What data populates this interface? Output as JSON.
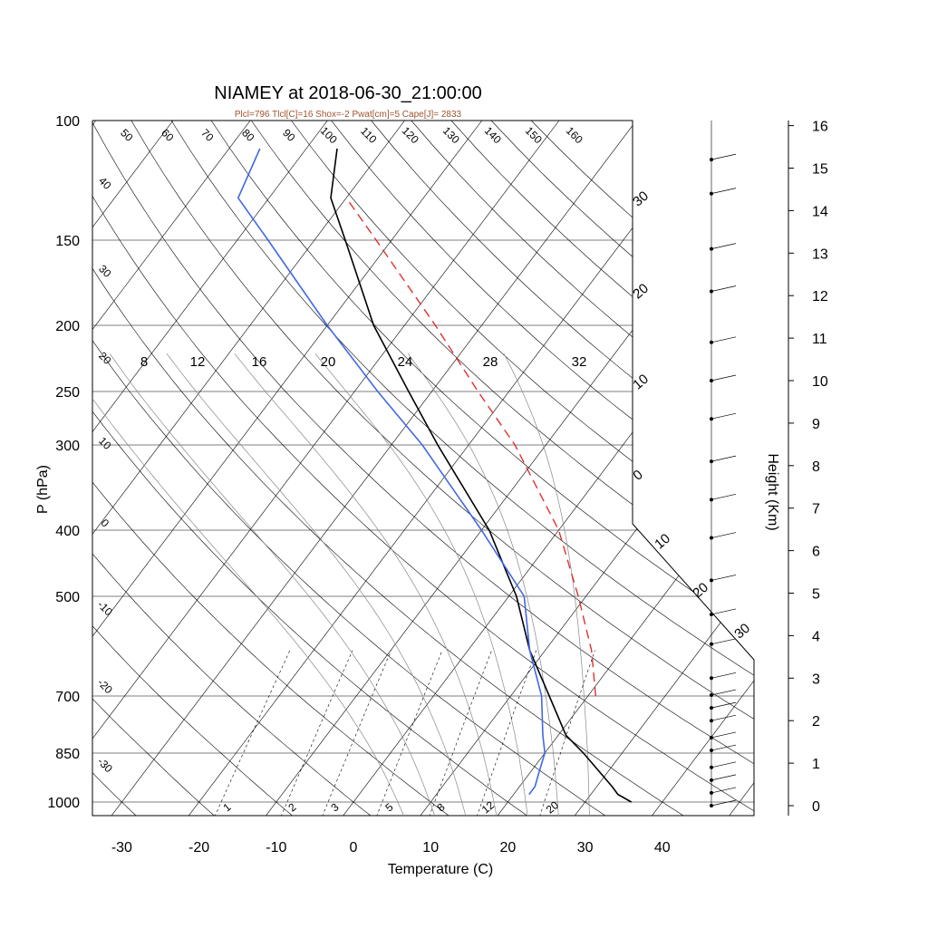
{
  "chart_data": {
    "type": "skew-t log-p",
    "title": "NIAMEY at 2018-06-30_21:00:00",
    "subtitle": "Plcl=796 Tlcl[C]=16 Shox=-2 Pwat[cm]=5 Cape[J]= 2833",
    "xlabel": "Temperature (C)",
    "ylabel": "P (hPa)",
    "y2label": "Height (Km)",
    "x_ticks": [
      "-30",
      "-20",
      "-10",
      "0",
      "10",
      "20",
      "30",
      "40"
    ],
    "y_ticks": [
      "100",
      "150",
      "200",
      "250",
      "300",
      "400",
      "500",
      "700",
      "850",
      "1000"
    ],
    "y2_ticks": [
      "0",
      "1",
      "2",
      "3",
      "4",
      "5",
      "6",
      "7",
      "8",
      "9",
      "10",
      "11",
      "12",
      "13",
      "14",
      "15",
      "16"
    ],
    "theta_labels": [
      "50",
      "60",
      "70",
      "80",
      "90",
      "100",
      "110",
      "120",
      "130",
      "140",
      "150",
      "160"
    ],
    "left_temp_labels": [
      "40",
      "30",
      "20",
      "10",
      "0",
      "-10",
      "-20",
      "-30"
    ],
    "right_temp_labels": [
      "30",
      "20",
      "10",
      "0",
      "10",
      "20",
      "30"
    ],
    "theta_e_labels": [
      "8",
      "12",
      "16",
      "20",
      "24",
      "28",
      "32"
    ],
    "mixing_ratio_labels": [
      "1",
      "2",
      "3",
      "5",
      "8",
      "12",
      "20"
    ],
    "colors": {
      "temperature": "#000000",
      "dewpoint": "#4169e1",
      "parcel": "#e03030",
      "title_sub": "#a0522d"
    },
    "series": [
      {
        "name": "",
        "role": "temperature",
        "points": [
          [
            1000,
            36
          ],
          [
            975,
            33.5
          ],
          [
            950,
            32
          ],
          [
            850,
            25
          ],
          [
            800,
            21
          ],
          [
            700,
            15
          ],
          [
            600,
            8
          ],
          [
            500,
            1
          ],
          [
            400,
            -9
          ],
          [
            300,
            -24
          ],
          [
            250,
            -33
          ],
          [
            200,
            -44
          ],
          [
            150,
            -56
          ],
          [
            130,
            -62
          ],
          [
            110,
            -66
          ]
        ]
      },
      {
        "name": "",
        "role": "dewpoint",
        "points": [
          [
            975,
            22
          ],
          [
            950,
            22
          ],
          [
            900,
            21
          ],
          [
            850,
            20
          ],
          [
            800,
            18
          ],
          [
            700,
            14
          ],
          [
            600,
            8
          ],
          [
            500,
            2
          ],
          [
            400,
            -10
          ],
          [
            300,
            -26
          ],
          [
            250,
            -37
          ],
          [
            200,
            -50
          ],
          [
            150,
            -66
          ],
          [
            130,
            -74
          ],
          [
            110,
            -76
          ]
        ]
      },
      {
        "name": "",
        "role": "parcel",
        "points": [
          [
            700,
            21
          ],
          [
            600,
            16
          ],
          [
            500,
            9
          ],
          [
            400,
            0
          ],
          [
            300,
            -14
          ],
          [
            250,
            -24
          ],
          [
            200,
            -36
          ],
          [
            150,
            -52
          ],
          [
            130,
            -60
          ]
        ]
      }
    ],
    "wind_markers": [
      "15.2",
      "14.4",
      "13.1",
      "12.1",
      "10.9",
      "10.0",
      "9.1",
      "8.1",
      "7.2",
      "6.3",
      "5.3",
      "4.5",
      "3.8",
      "3.0",
      "2.6",
      "2.3",
      "2.0",
      "1.6",
      "1.3",
      "0.9",
      "0.6",
      "0.3",
      "0.0"
    ]
  }
}
